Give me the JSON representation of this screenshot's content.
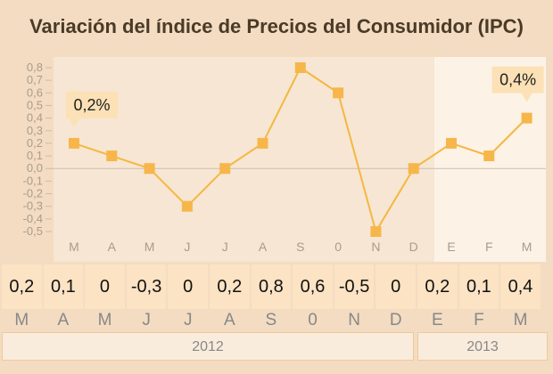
{
  "title": "Variación del índice de Precios del Consumidor (IPC)",
  "chart_data": {
    "type": "line",
    "categories": [
      "M",
      "A",
      "M",
      "J",
      "J",
      "A",
      "S",
      "0",
      "N",
      "D",
      "E",
      "F",
      "M"
    ],
    "values": [
      0.2,
      0.1,
      0,
      -0.3,
      0,
      0.2,
      0.8,
      0.6,
      -0.5,
      0,
      0.2,
      0.1,
      0.4
    ],
    "ylim": [
      -0.5,
      0.8
    ],
    "yticks": [
      "0,8",
      "0,7",
      "0,6",
      "0,5",
      "0,4",
      "0,3",
      "0,2",
      "0,1",
      "0,0",
      "-0,1",
      "-0,2",
      "-0,3",
      "-0,4",
      "-0,5"
    ],
    "callouts": [
      "0,2%",
      "0,4%"
    ],
    "colors": {
      "line": "#f5b740",
      "point": "#f7b64a",
      "highlight": "#fdf2e6"
    }
  },
  "table": {
    "values": [
      "0,2",
      "0,1",
      "0",
      "-0,3",
      "0",
      "0,2",
      "0,8",
      "0,6",
      "-0,5",
      "0",
      "0,2",
      "0,1",
      "0,4"
    ],
    "months": [
      "M",
      "A",
      "M",
      "J",
      "J",
      "A",
      "S",
      "0",
      "N",
      "D",
      "E",
      "F",
      "M"
    ],
    "years": [
      "2012",
      "2013"
    ]
  }
}
